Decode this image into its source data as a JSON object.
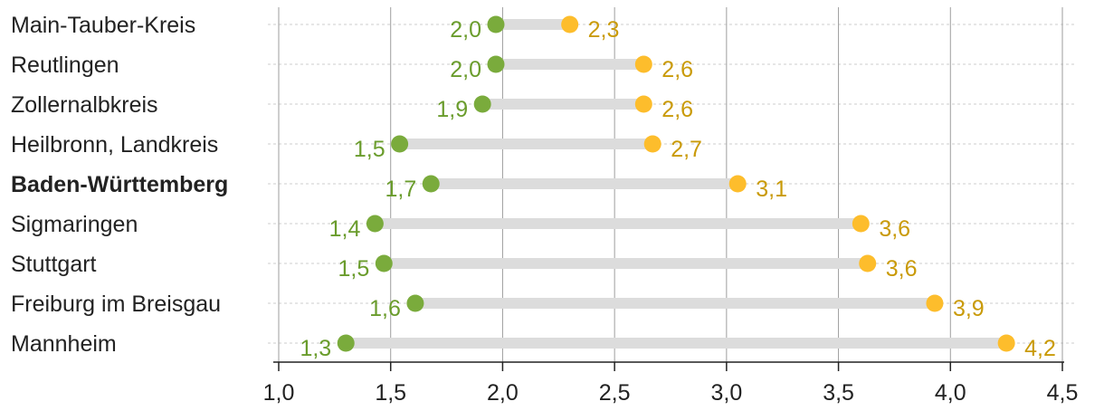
{
  "chart_data": {
    "type": "dumbbell",
    "title": "",
    "xlabel": "",
    "ylabel": "",
    "xlim": [
      1.0,
      4.5
    ],
    "x_ticks": [
      "1,0",
      "1,5",
      "2,0",
      "2,5",
      "3,0",
      "3,5",
      "4,0",
      "4,5"
    ],
    "x_tick_values": [
      1.0,
      1.5,
      2.0,
      2.5,
      3.0,
      3.5,
      4.0,
      4.5
    ],
    "grid": "vertical",
    "categories": [
      "Main-Tauber-Kreis",
      "Reutlingen",
      "Zollernalbkreis",
      "Heilbronn, Landkreis",
      "Baden-Württemberg",
      "Sigmaringen",
      "Stuttgart",
      "Freiburg im Breisgau",
      "Mannheim"
    ],
    "highlighted_category": "Baden-Württemberg",
    "series": [
      {
        "color": "#7aab3c",
        "label_color": "#6a9c2c",
        "values": [
          1.97,
          1.97,
          1.91,
          1.54,
          1.68,
          1.43,
          1.47,
          1.61,
          1.3
        ],
        "labels": [
          "2,0",
          "2,0",
          "1,9",
          "1,5",
          "1,7",
          "1,4",
          "1,5",
          "1,6",
          "1,3"
        ]
      },
      {
        "color": "#fdbd2c",
        "label_color": "#c99a07",
        "values": [
          2.3,
          2.63,
          2.63,
          2.67,
          3.05,
          3.6,
          3.63,
          3.93,
          4.25
        ],
        "labels": [
          "2,3",
          "2,6",
          "2,6",
          "2,7",
          "3,1",
          "3,6",
          "3,6",
          "3,9",
          "4,2"
        ]
      }
    ],
    "colors": {
      "connector": "#dcdcdc",
      "gridline": "#9e9e9e",
      "row_line": "#cccccc",
      "axis": "#222222"
    }
  }
}
